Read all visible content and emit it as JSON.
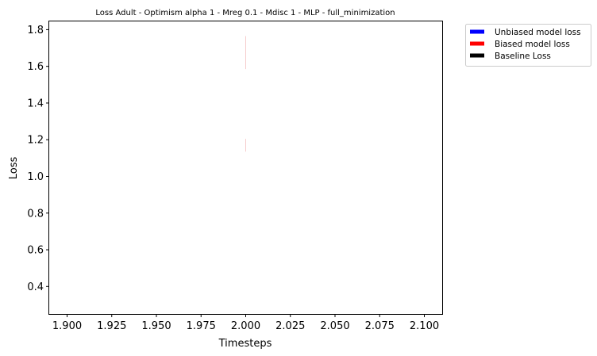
{
  "chart_data": {
    "type": "line",
    "title": "Loss Adult - Optimism alpha 1 - Mreg 0.1 - Mdisc 1 - MLP - full_minimization",
    "xlabel": "Timesteps",
    "ylabel": "Loss",
    "xlim": [
      1.89,
      2.11
    ],
    "ylim": [
      0.25,
      1.845
    ],
    "xticks": [
      1.9,
      1.925,
      1.95,
      1.975,
      2.0,
      2.025,
      2.05,
      2.075,
      2.1
    ],
    "xtick_labels": [
      "1.900",
      "1.925",
      "1.950",
      "1.975",
      "2.000",
      "2.025",
      "2.050",
      "2.075",
      "2.100"
    ],
    "yticks": [
      0.4,
      0.6,
      0.8,
      1.0,
      1.2,
      1.4,
      1.6,
      1.8
    ],
    "ytick_labels": [
      "0.4",
      "0.6",
      "0.8",
      "1.0",
      "1.2",
      "1.4",
      "1.6",
      "1.8"
    ],
    "grid": false,
    "legend_placement": "outside-top-right",
    "series": [
      {
        "name": "Unbiased model loss",
        "color": "#0000ff",
        "x": [],
        "y": []
      },
      {
        "name": "Biased model loss",
        "color": "#ff0000",
        "x": [],
        "y": []
      },
      {
        "name": "Baseline Loss",
        "color": "#000000",
        "x": [],
        "y": []
      }
    ],
    "faint_marks": [
      {
        "x": 2.0,
        "y_low": 1.585,
        "y_high": 1.765,
        "color": "#f6cccc"
      },
      {
        "x": 2.0,
        "y_low": 1.135,
        "y_high": 1.205,
        "color": "#f6cccc"
      }
    ]
  }
}
